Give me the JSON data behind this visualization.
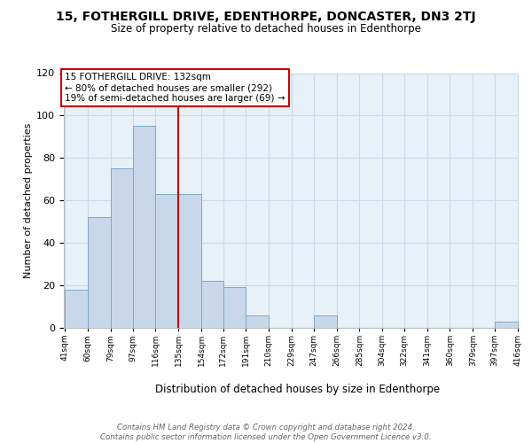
{
  "title": "15, FOTHERGILL DRIVE, EDENTHORPE, DONCASTER, DN3 2TJ",
  "subtitle": "Size of property relative to detached houses in Edenthorpe",
  "xlabel": "Distribution of detached houses by size in Edenthorpe",
  "ylabel": "Number of detached properties",
  "bar_edges": [
    41,
    60,
    79,
    97,
    116,
    135,
    154,
    172,
    191,
    210,
    229,
    247,
    266,
    285,
    304,
    322,
    341,
    360,
    379,
    397,
    416
  ],
  "bar_heights": [
    18,
    52,
    75,
    95,
    63,
    63,
    22,
    19,
    6,
    0,
    0,
    6,
    0,
    0,
    0,
    0,
    0,
    0,
    0,
    3
  ],
  "bar_color": "#c8d8ea",
  "bar_edge_color": "#7aaac8",
  "property_line_x": 135,
  "annotation_line1": "15 FOTHERGILL DRIVE: 132sqm",
  "annotation_line2": "← 80% of detached houses are smaller (292)",
  "annotation_line3": "19% of semi-detached houses are larger (69) →",
  "annotation_box_color": "#ffffff",
  "annotation_box_edge_color": "#cc0000",
  "vline_color": "#cc0000",
  "ylim": [
    0,
    120
  ],
  "yticks": [
    0,
    20,
    40,
    60,
    80,
    100,
    120
  ],
  "grid_color": "#ccd8e8",
  "bg_color": "#e8f0f8",
  "footer": "Contains HM Land Registry data © Crown copyright and database right 2024.\nContains public sector information licensed under the Open Government Licence v3.0.",
  "tick_labels": [
    "41sqm",
    "60sqm",
    "79sqm",
    "97sqm",
    "116sqm",
    "135sqm",
    "154sqm",
    "172sqm",
    "191sqm",
    "210sqm",
    "229sqm",
    "247sqm",
    "266sqm",
    "285sqm",
    "304sqm",
    "322sqm",
    "341sqm",
    "360sqm",
    "379sqm",
    "397sqm",
    "416sqm"
  ],
  "figsize": [
    6.0,
    5.0
  ],
  "dpi": 100
}
